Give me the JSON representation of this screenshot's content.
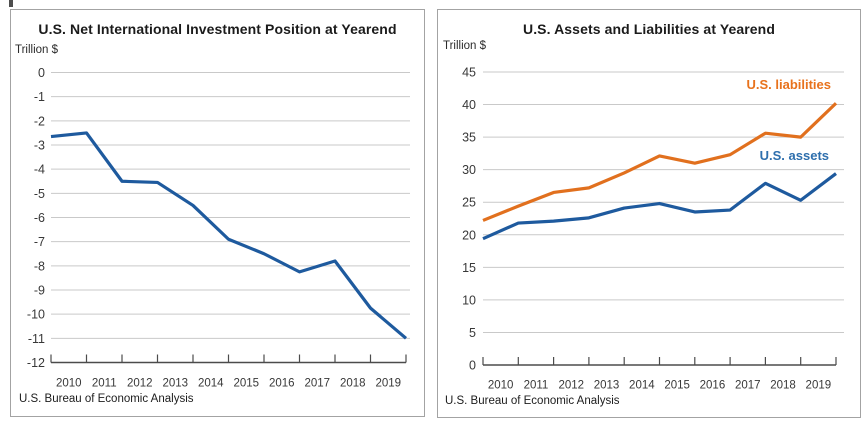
{
  "page": {
    "background": "#ffffff",
    "panel_border_color": "#a3a3a3",
    "gridline_color": "#c9c9c9",
    "axis_color": "#4b4b4b"
  },
  "chart_data": [
    {
      "type": "line",
      "title": "U.S. Net International Investment Position at Yearend",
      "unit_label": "Trillion $",
      "source": "U.S. Bureau of Economic Analysis",
      "categories": [
        "2010",
        "2011",
        "2012",
        "2013",
        "2014",
        "2015",
        "2016",
        "2017",
        "2018",
        "2019"
      ],
      "x_layout_note": "11 yearend data points drawn edge-to-edge across 11 axis tick marks; year labels sit between tick marks",
      "y_ticks": [
        0,
        -1,
        -2,
        -3,
        -4,
        -5,
        -6,
        -7,
        -8,
        -9,
        -10,
        -11,
        -12
      ],
      "ylim": [
        -12,
        0
      ],
      "grid": true,
      "legend_position": "none",
      "series": [
        {
          "id": "niip",
          "name": "U.S. net international investment position",
          "color": "#1e5a9e",
          "values": [
            -2.65,
            -2.5,
            -4.5,
            -4.55,
            -5.5,
            -6.9,
            -7.5,
            -8.25,
            -7.8,
            -9.75,
            -11.0
          ]
        }
      ],
      "legend": []
    },
    {
      "type": "line",
      "title": "U.S. Assets and Liabilities at Yearend",
      "unit_label": "Trillion $",
      "source": "U.S. Bureau of Economic Analysis",
      "categories": [
        "2010",
        "2011",
        "2012",
        "2013",
        "2014",
        "2015",
        "2016",
        "2017",
        "2018",
        "2019"
      ],
      "x_layout_note": "11 yearend data points drawn edge-to-edge across 11 axis tick marks; year labels sit between tick marks",
      "y_ticks": [
        45,
        40,
        35,
        30,
        25,
        20,
        15,
        10,
        5,
        0
      ],
      "ylim": [
        0,
        45
      ],
      "grid": true,
      "legend_position": "inline-right",
      "series": [
        {
          "id": "liabilities",
          "name": "U.S. liabilities",
          "color": "#e1701e",
          "values": [
            22.2,
            24.4,
            26.5,
            27.2,
            29.5,
            32.1,
            31.0,
            32.3,
            35.6,
            35.0,
            40.2
          ]
        },
        {
          "id": "assets",
          "name": "U.S. assets",
          "color": "#1e5a9e",
          "values": [
            19.4,
            21.8,
            22.1,
            22.6,
            24.1,
            24.8,
            23.5,
            23.8,
            27.9,
            25.3,
            29.4
          ]
        }
      ],
      "legend": [
        {
          "label": "U.S. liabilities",
          "color": "#e8721c"
        },
        {
          "label": "U.S. assets",
          "color": "#2e6fad"
        }
      ]
    }
  ]
}
